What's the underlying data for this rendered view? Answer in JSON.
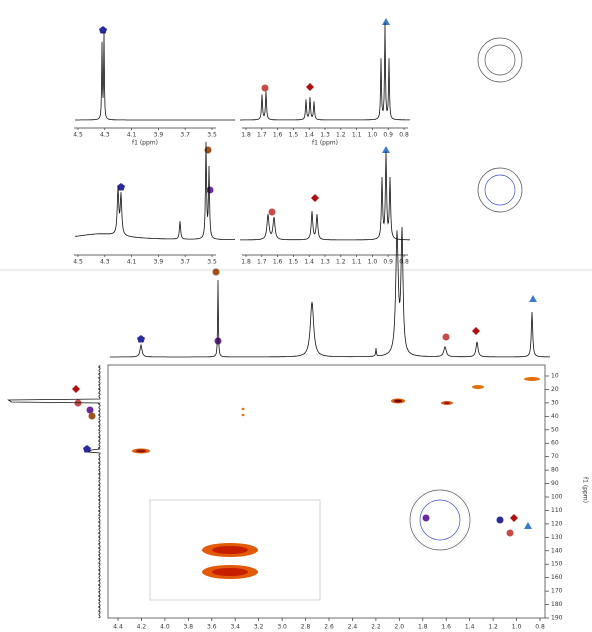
{
  "panel_1": {
    "axis_left": {
      "ticks": [
        "4.5",
        "4.3",
        "4.1",
        "3.9",
        "3.7",
        "3.5"
      ],
      "label": "f1 (ppm)"
    },
    "axis_right": {
      "ticks": [
        "1.8",
        "1.7",
        "1.6",
        "1.5",
        "1.4",
        "1.3",
        "1.2",
        "1.1",
        "1.0",
        "0.9",
        "0.8"
      ],
      "label": "f1 (ppm)"
    }
  },
  "panel_2": {
    "axis_left": {
      "ticks": [
        "4.5",
        "4.3",
        "4.1",
        "3.9",
        "3.7",
        "3.5"
      ]
    },
    "axis_right": {
      "ticks": [
        "1.8",
        "1.7",
        "1.6",
        "1.5",
        "1.4",
        "1.3",
        "1.2",
        "1.1",
        "1.0",
        "0.9",
        "0.8"
      ]
    }
  },
  "panel_2d": {
    "x_ticks": [
      "4.4",
      "4.2",
      "4.0",
      "3.8",
      "3.6",
      "3.4",
      "3.2",
      "3.0",
      "2.8",
      "2.6",
      "2.4",
      "2.2",
      "2.0",
      "1.8",
      "1.6",
      "1.4",
      "1.2",
      "1.0",
      "0.8"
    ],
    "y_ticks": [
      "10",
      "20",
      "30",
      "40",
      "50",
      "60",
      "70",
      "80",
      "90",
      "100",
      "110",
      "120",
      "130",
      "140",
      "150",
      "160",
      "170",
      "180",
      "190"
    ],
    "y_label": "f1 (ppm)"
  }
}
